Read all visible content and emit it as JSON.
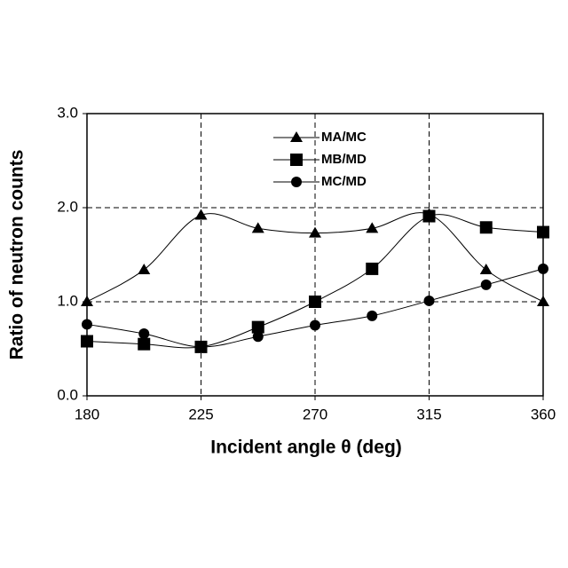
{
  "chart_data": {
    "type": "line",
    "x_label": "Incident angle θ (deg)",
    "y_label": "Ratio of neutron counts",
    "x": [
      180,
      202.5,
      225,
      247.5,
      270,
      292.5,
      315,
      337.5,
      360
    ],
    "series": [
      {
        "name": "MA/MC",
        "color": "#000000",
        "marker": "triangle",
        "values": [
          1.0,
          1.34,
          1.92,
          1.78,
          1.73,
          1.78,
          1.93,
          1.34,
          1.0
        ]
      },
      {
        "name": "MB/MD",
        "color": "#000000",
        "marker": "square",
        "values": [
          0.58,
          0.55,
          0.52,
          0.73,
          1.0,
          1.35,
          1.91,
          1.79,
          1.74
        ]
      },
      {
        "name": "MC/MD",
        "color": "#000000",
        "marker": "circle",
        "values": [
          0.76,
          0.66,
          0.52,
          0.63,
          0.75,
          0.85,
          1.01,
          1.18,
          1.35
        ]
      }
    ],
    "xlim": [
      180,
      360
    ],
    "xticks": [
      180,
      225,
      270,
      315,
      360
    ],
    "ylim": [
      0,
      3
    ],
    "yticks": [
      {
        "value": 0,
        "label": "0.0"
      },
      {
        "value": 1,
        "label": "1.0"
      },
      {
        "value": 2,
        "label": "2.0"
      },
      {
        "value": 3,
        "label": "3.0"
      }
    ],
    "grid": true,
    "smooth": true,
    "legend": "top"
  }
}
